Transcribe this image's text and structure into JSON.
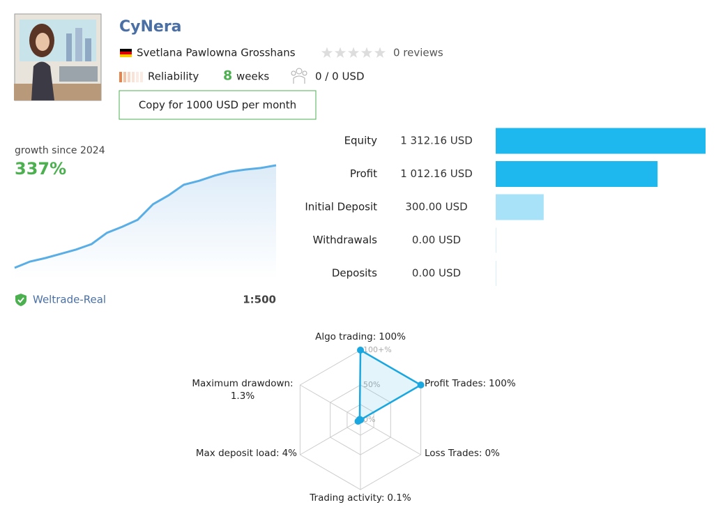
{
  "header": {
    "title": "CyNera",
    "author": "Svetlana Pawlowna Grosshans",
    "reviews": "0 reviews",
    "reliability": "Reliability",
    "weeks_count": 8,
    "weeks": "weeks",
    "subscribers": "0 / 0 USD",
    "copy_button": "Copy for 1000 USD per month"
  },
  "growth": {
    "caption": "growth since 2024",
    "value_label": "337%",
    "color": "#5aaee6",
    "values": [
      0,
      20.6,
      32,
      46,
      60,
      78,
      115,
      135,
      158,
      209,
      238,
      273,
      286,
      303,
      316,
      323,
      328,
      337
    ]
  },
  "account": {
    "broker": "Weltrade-Real",
    "leverage": "1:500"
  },
  "balance": {
    "rows": [
      {
        "label": "Equity",
        "value": 1312.16,
        "value_label": "1 312.16 USD",
        "color": "#1fb8ee"
      },
      {
        "label": "Profit",
        "value": 1012.16,
        "value_label": "1 012.16 USD",
        "color": "#1fb8ee"
      },
      {
        "label": "Initial Deposit",
        "value": 300,
        "value_label": "300.00 USD",
        "color": "#a8e2f8"
      },
      {
        "label": "Withdrawals",
        "value": 0,
        "value_label": "0.00 USD",
        "color": "#a8e2f8"
      },
      {
        "label": "Deposits",
        "value": 0,
        "value_label": "0.00 USD",
        "color": "#a8e2f8"
      }
    ]
  },
  "radar": {
    "color": "#1aa7e0",
    "ticks": [
      {
        "value": 0,
        "label": "0%"
      },
      {
        "value": 50,
        "label": "50%"
      },
      {
        "value": 100,
        "label": "100+%"
      }
    ],
    "axes": [
      {
        "name": "Algo trading:",
        "value": 100,
        "value_label": "100%"
      },
      {
        "name": "Profit Trades:",
        "value": 100,
        "value_label": "100%"
      },
      {
        "name": "Loss Trades:",
        "value": 0,
        "value_label": "0%"
      },
      {
        "name": "Trading activity:",
        "value": 0.1,
        "value_label": "0.1%"
      },
      {
        "name": "Max deposit load:",
        "value": 4,
        "value_label": "4%"
      },
      {
        "name": "Maximum drawdown:",
        "value": 1.3,
        "value_label": "1.3%"
      }
    ]
  }
}
